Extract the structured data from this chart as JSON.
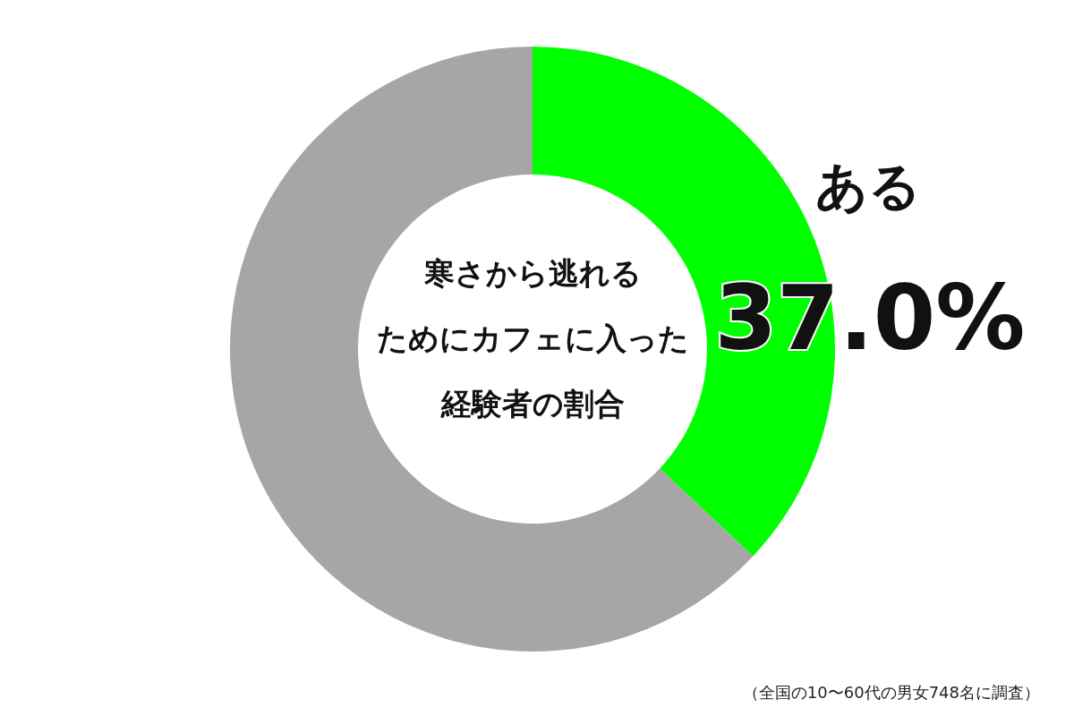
{
  "chart_data": {
    "type": "donut",
    "title": "寒さから逃れるためにカフェに入った経験者の割合",
    "categories": [
      "ある",
      null
    ],
    "values": [
      37.0,
      63.0
    ],
    "colors": [
      "#00ff00",
      "#a6a6a6"
    ],
    "value_labels": [
      "37.0%",
      null
    ],
    "annotations": [
      "（全国の10〜60代の男女748名に調査）"
    ]
  }
}
